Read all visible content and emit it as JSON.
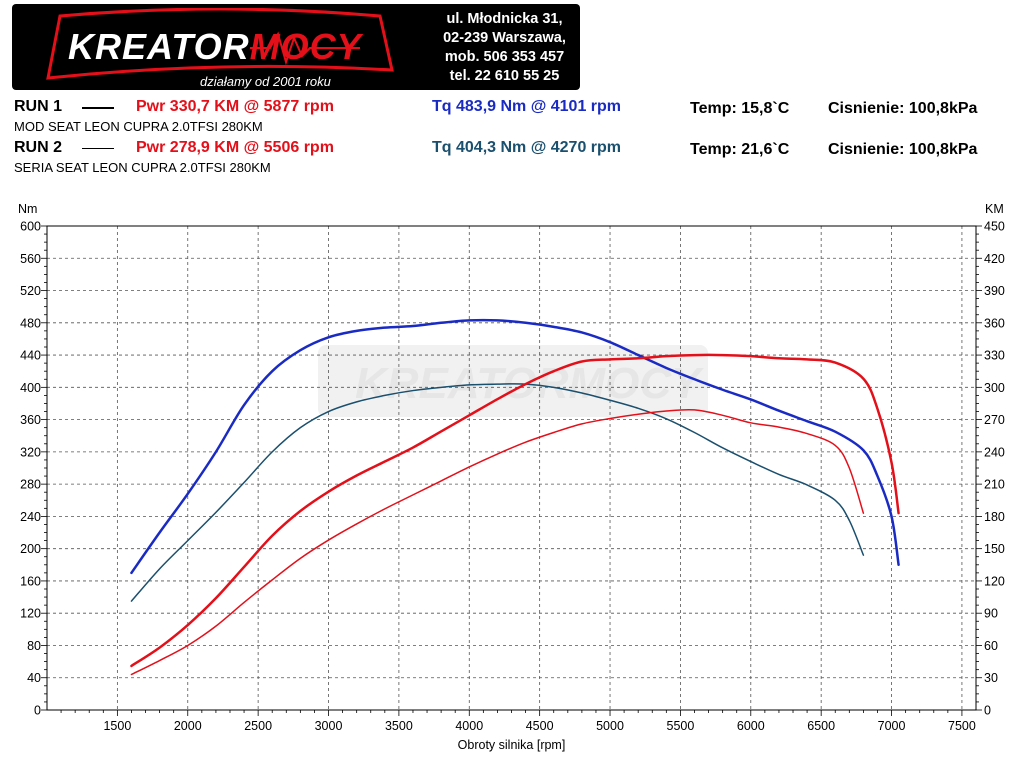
{
  "logo": {
    "brand_a": "KREATOR",
    "brand_b": "MOCY",
    "tagline": "działamy od 2001 roku"
  },
  "contact": {
    "line1": "ul. Młodnicka 31,",
    "line2": "02-239  Warszawa,",
    "line3": "mob.  506 353 457",
    "line4": "tel.  22 610 55 25"
  },
  "run1": {
    "label": "RUN 1",
    "pwr": "Pwr  330,7 KM @ 5877 rpm",
    "tq": "Tq 483,9 Nm @ 4101 rpm",
    "temp": "Temp: 15,8`C",
    "pressure": "Cisnienie: 100,8kPa",
    "desc": "MOD SEAT LEON CUPRA 2.0TFSI 280KM"
  },
  "run2": {
    "label": "RUN 2",
    "pwr": "Pwr  278,9 KM @ 5506 rpm",
    "tq": "Tq 404,3 Nm @ 4270 rpm",
    "temp": "Temp: 21,6`C",
    "pressure": "Cisnienie: 100,8kPa",
    "desc": "SERIA SEAT LEON CUPRA 2.0TFSI 280KM"
  },
  "colors": {
    "run1_power": "#e3101a",
    "run1_torque": "#1a2bc4",
    "run2_power": "#e3101a",
    "run2_torque": "#1a4f6e"
  },
  "chart_data": {
    "type": "line",
    "xlabel": "Obroty silnika [rpm]",
    "ylabel_left": "Nm",
    "ylabel_right": "KM",
    "xlim": [
      1000,
      7600
    ],
    "ylim_left": [
      0,
      600
    ],
    "ylim_right": [
      0,
      450
    ],
    "x_ticks": [
      1500,
      2000,
      2500,
      3000,
      3500,
      4000,
      4500,
      5000,
      5500,
      6000,
      6500,
      7000,
      7500
    ],
    "y_ticks_left": [
      0,
      40,
      80,
      120,
      160,
      200,
      240,
      280,
      320,
      360,
      400,
      440,
      480,
      520,
      560,
      600
    ],
    "y_ticks_right": [
      0,
      30,
      60,
      90,
      120,
      150,
      180,
      210,
      240,
      270,
      300,
      330,
      360,
      390,
      420,
      450
    ],
    "grid": true,
    "series": [
      {
        "axis": "left",
        "color": "#1a2bc4",
        "width": 2.5,
        "points": [
          [
            1600,
            170
          ],
          [
            1800,
            220
          ],
          [
            2000,
            268
          ],
          [
            2200,
            320
          ],
          [
            2400,
            378
          ],
          [
            2600,
            420
          ],
          [
            2800,
            446
          ],
          [
            3000,
            462
          ],
          [
            3200,
            470
          ],
          [
            3400,
            474
          ],
          [
            3600,
            476
          ],
          [
            3800,
            480
          ],
          [
            4000,
            483
          ],
          [
            4200,
            483
          ],
          [
            4400,
            480
          ],
          [
            4600,
            475
          ],
          [
            4800,
            468
          ],
          [
            5000,
            456
          ],
          [
            5200,
            440
          ],
          [
            5400,
            424
          ],
          [
            5600,
            410
          ],
          [
            5800,
            397
          ],
          [
            6000,
            385
          ],
          [
            6200,
            371
          ],
          [
            6400,
            358
          ],
          [
            6600,
            345
          ],
          [
            6800,
            322
          ],
          [
            6900,
            290
          ],
          [
            7000,
            240
          ],
          [
            7050,
            180
          ]
        ]
      },
      {
        "axis": "left",
        "color": "#1a4f6e",
        "width": 1.5,
        "points": [
          [
            1600,
            135
          ],
          [
            1800,
            175
          ],
          [
            2000,
            210
          ],
          [
            2200,
            245
          ],
          [
            2400,
            282
          ],
          [
            2600,
            320
          ],
          [
            2800,
            350
          ],
          [
            3000,
            370
          ],
          [
            3200,
            382
          ],
          [
            3400,
            390
          ],
          [
            3600,
            396
          ],
          [
            3800,
            400
          ],
          [
            4000,
            403
          ],
          [
            4200,
            404
          ],
          [
            4400,
            404
          ],
          [
            4600,
            400
          ],
          [
            4800,
            393
          ],
          [
            5000,
            384
          ],
          [
            5200,
            374
          ],
          [
            5400,
            361
          ],
          [
            5600,
            344
          ],
          [
            5800,
            325
          ],
          [
            6000,
            308
          ],
          [
            6200,
            292
          ],
          [
            6400,
            279
          ],
          [
            6600,
            260
          ],
          [
            6700,
            235
          ],
          [
            6800,
            192
          ]
        ]
      },
      {
        "axis": "right",
        "color": "#e3101a",
        "width": 2.5,
        "points": [
          [
            1600,
            41
          ],
          [
            1800,
            58
          ],
          [
            2000,
            79
          ],
          [
            2200,
            104
          ],
          [
            2400,
            133
          ],
          [
            2600,
            162
          ],
          [
            2800,
            185
          ],
          [
            3000,
            203
          ],
          [
            3200,
            218
          ],
          [
            3400,
            231
          ],
          [
            3600,
            244
          ],
          [
            3800,
            259
          ],
          [
            4000,
            274
          ],
          [
            4200,
            289
          ],
          [
            4400,
            303
          ],
          [
            4600,
            315
          ],
          [
            4800,
            324
          ],
          [
            5000,
            326
          ],
          [
            5200,
            327
          ],
          [
            5400,
            329
          ],
          [
            5600,
            330
          ],
          [
            5800,
            330
          ],
          [
            6000,
            329
          ],
          [
            6200,
            327
          ],
          [
            6400,
            326
          ],
          [
            6600,
            323
          ],
          [
            6800,
            308
          ],
          [
            6900,
            280
          ],
          [
            7000,
            230
          ],
          [
            7050,
            183
          ]
        ]
      },
      {
        "axis": "right",
        "color": "#e3101a",
        "width": 1.5,
        "points": [
          [
            1600,
            33
          ],
          [
            1800,
            46
          ],
          [
            2000,
            60
          ],
          [
            2200,
            78
          ],
          [
            2400,
            100
          ],
          [
            2600,
            121
          ],
          [
            2800,
            141
          ],
          [
            3000,
            158
          ],
          [
            3200,
            173
          ],
          [
            3400,
            187
          ],
          [
            3600,
            200
          ],
          [
            3800,
            213
          ],
          [
            4000,
            226
          ],
          [
            4200,
            238
          ],
          [
            4400,
            249
          ],
          [
            4600,
            258
          ],
          [
            4800,
            266
          ],
          [
            5000,
            271
          ],
          [
            5200,
            275
          ],
          [
            5400,
            278
          ],
          [
            5600,
            279
          ],
          [
            5800,
            274
          ],
          [
            6000,
            267
          ],
          [
            6200,
            263
          ],
          [
            6400,
            257
          ],
          [
            6600,
            246
          ],
          [
            6700,
            225
          ],
          [
            6800,
            183
          ]
        ]
      }
    ]
  }
}
